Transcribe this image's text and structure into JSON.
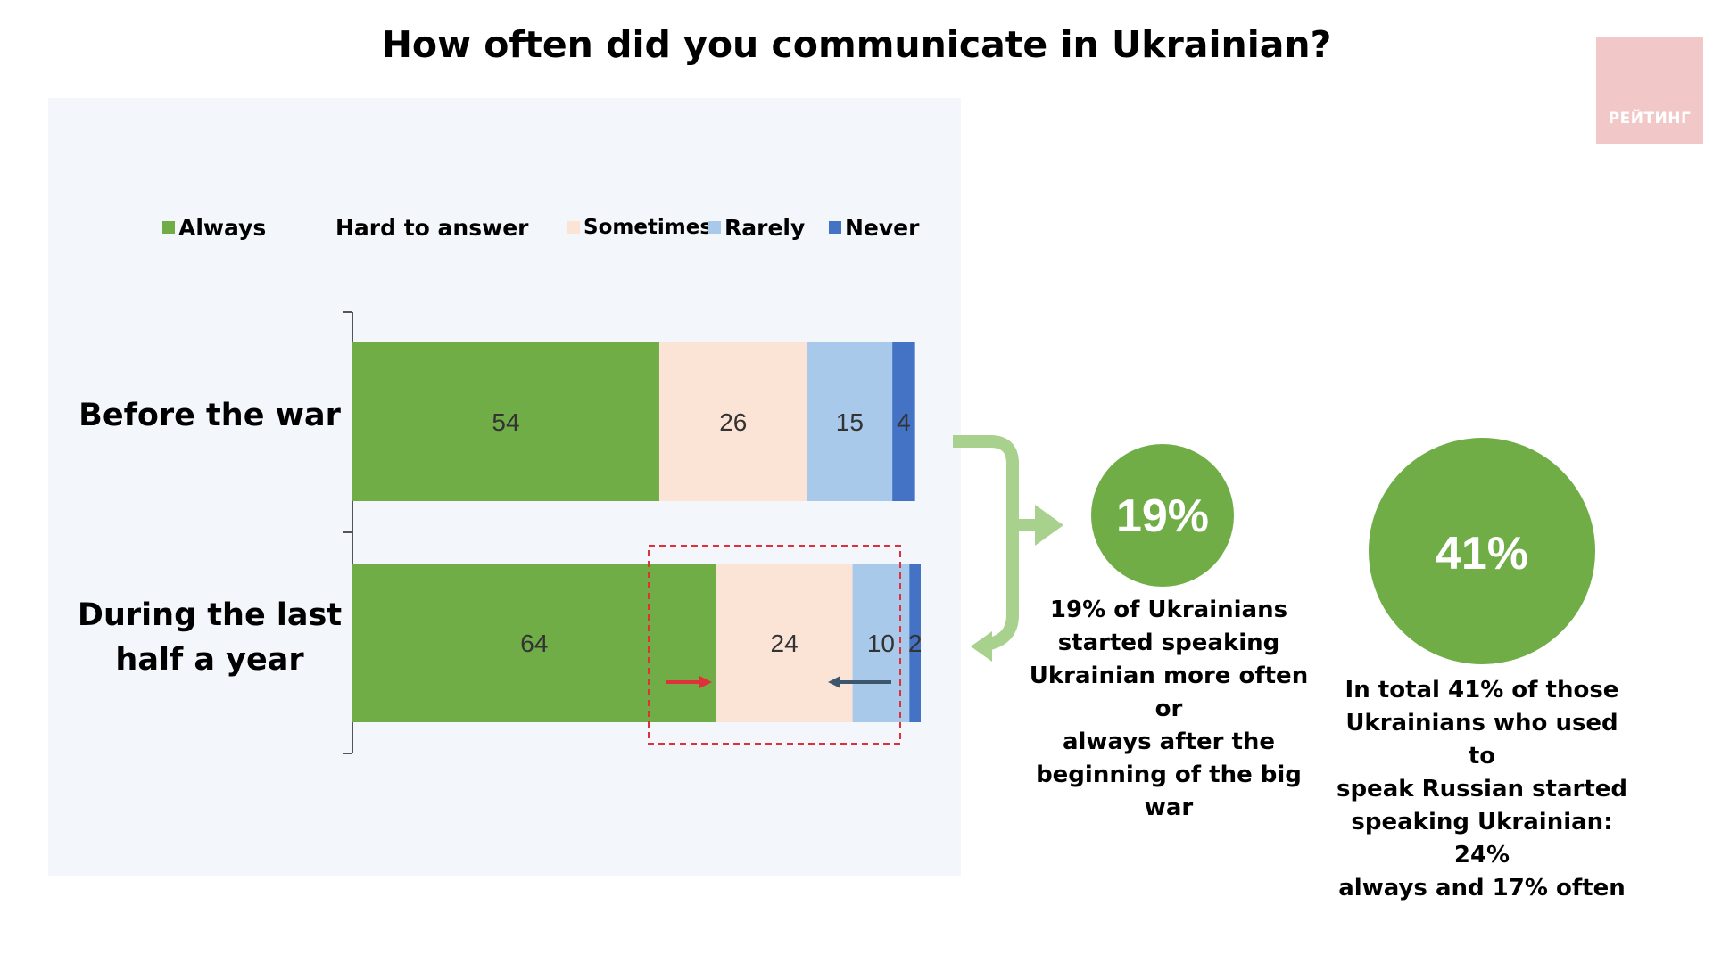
{
  "title": "How often did you communicate in Ukrainian?",
  "logo": {
    "text": "РЕЙТИНГ"
  },
  "colors": {
    "always": "#70ad47",
    "hard_to_answer": "#f3f6fb",
    "sometimes": "#fbe4d5",
    "rarely": "#a9c9eb",
    "never": "#4472c4",
    "circle": "#70ad47",
    "bracket": "#a9d18e",
    "dash_box": "#e0303a",
    "arrow_red": "#e0303a",
    "arrow_dark": "#3c566e"
  },
  "chart_data": {
    "type": "bar",
    "orientation": "horizontal",
    "stacked": true,
    "title": "How often did you communicate in Ukrainian?",
    "categories": [
      "Before the war",
      "During the last half a year"
    ],
    "series": [
      {
        "name": "Always",
        "values": [
          54,
          64
        ]
      },
      {
        "name": "Hard to answer",
        "values": [
          0,
          0
        ]
      },
      {
        "name": "Sometimes",
        "values": [
          26,
          24
        ]
      },
      {
        "name": "Rarely",
        "values": [
          15,
          10
        ]
      },
      {
        "name": "Never",
        "values": [
          4,
          2
        ]
      }
    ],
    "xlim": [
      0,
      100
    ],
    "legend_position": "top",
    "grid": false,
    "data_labels": true
  },
  "legend": {
    "always": "Always",
    "hard_to_answer": "Hard to answer",
    "sometimes": "Sometimes",
    "rarely": "Rarely",
    "never": "Never"
  },
  "categories": {
    "before": "Before the war",
    "during_line1": "During the last",
    "during_line2": "half a year"
  },
  "callouts": {
    "shift": {
      "value": "19%",
      "text": [
        "19% of Ukrainians",
        "started speaking",
        "Ukrainian more often or",
        "always after the",
        "beginning of the big war"
      ]
    },
    "total": {
      "value": "41%",
      "text": [
        "In total 41% of those",
        "Ukrainians who used to",
        "speak Russian started",
        "speaking Ukrainian: 24%",
        "always and 17% often"
      ]
    }
  }
}
